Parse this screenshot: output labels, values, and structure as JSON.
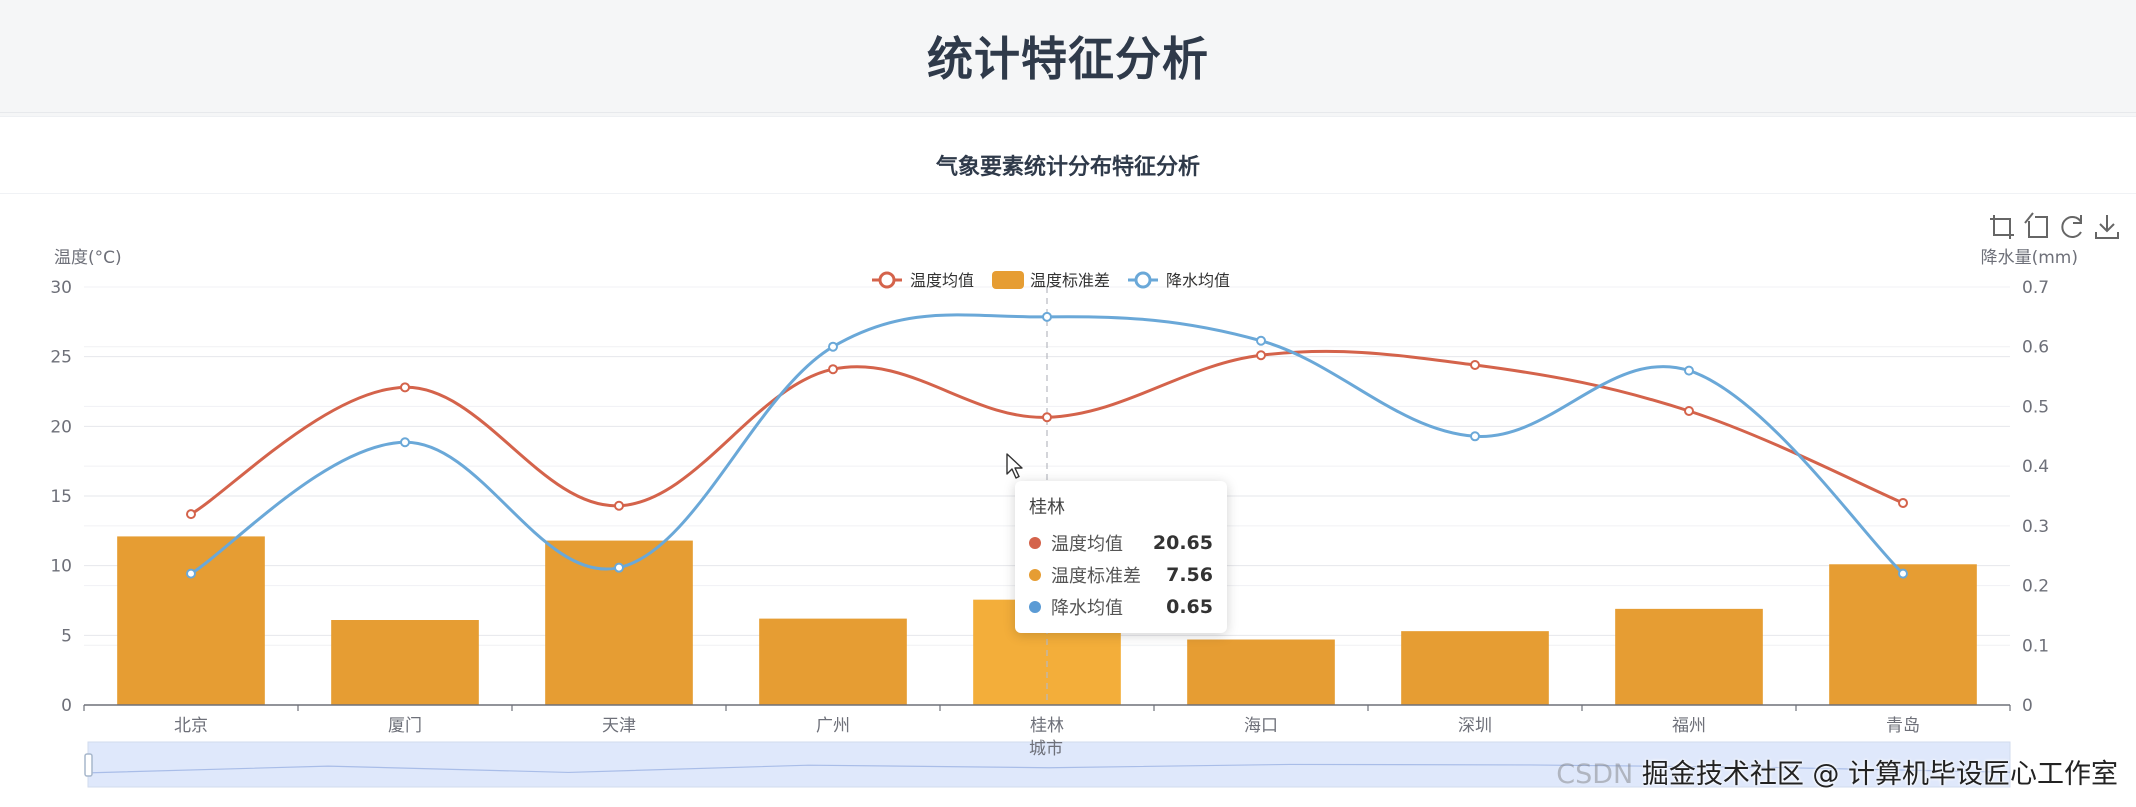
{
  "page": {
    "title": "统计特征分析"
  },
  "card": {
    "title": "气象要素统计分布特征分析"
  },
  "toolbox": {
    "items": [
      "zoom-select-icon",
      "zoom-reset-icon",
      "restore-icon",
      "download-icon"
    ]
  },
  "chart_data": {
    "type": "bar",
    "categories": [
      "北京",
      "厦门",
      "天津",
      "广州",
      "桂林",
      "海口",
      "深圳",
      "福州",
      "青岛"
    ],
    "xlabel": "城市",
    "ylabel_left": "温度(°C)",
    "ylabel_right": "降水量(mm)",
    "ylim_left": [
      0,
      30
    ],
    "ylim_right": [
      0,
      0.7
    ],
    "yticks_left": [
      0,
      5,
      10,
      15,
      20,
      25,
      30
    ],
    "yticks_right": [
      0,
      0.1,
      0.2,
      0.3,
      0.4,
      0.5,
      0.6,
      0.7
    ],
    "legend_position": "top-center",
    "grid": true,
    "highlighted_category": "桂林",
    "series": [
      {
        "name": "温度均值",
        "type": "line",
        "smooth": true,
        "axis": "left",
        "color": "#d4634b",
        "values": [
          13.7,
          22.8,
          14.3,
          24.1,
          20.65,
          25.1,
          24.4,
          21.1,
          14.5
        ]
      },
      {
        "name": "温度标准差",
        "type": "bar",
        "axis": "left",
        "color": "#e69d33",
        "highlight_color": "#f3ae3a",
        "values": [
          12.1,
          6.1,
          11.8,
          6.2,
          7.56,
          4.7,
          5.3,
          6.9,
          10.1
        ]
      },
      {
        "name": "降水均值",
        "type": "line",
        "smooth": true,
        "axis": "right",
        "color": "#6aa8d8",
        "values": [
          0.22,
          0.44,
          0.23,
          0.6,
          0.65,
          0.61,
          0.45,
          0.56,
          0.22
        ]
      }
    ],
    "datazoom": {
      "range": [
        0,
        100
      ]
    }
  },
  "tooltip": {
    "title": "桂林",
    "rows": [
      {
        "name": "温度均值",
        "value": "20.65",
        "color": "#d4634b"
      },
      {
        "name": "温度标准差",
        "value": "7.56",
        "color": "#e69d33"
      },
      {
        "name": "降水均值",
        "value": "0.65",
        "color": "#5b9bd5"
      }
    ]
  },
  "watermark": {
    "prefix": "CSDN",
    "text": "掘金技术社区 @ 计算机毕设匠心工作室"
  }
}
